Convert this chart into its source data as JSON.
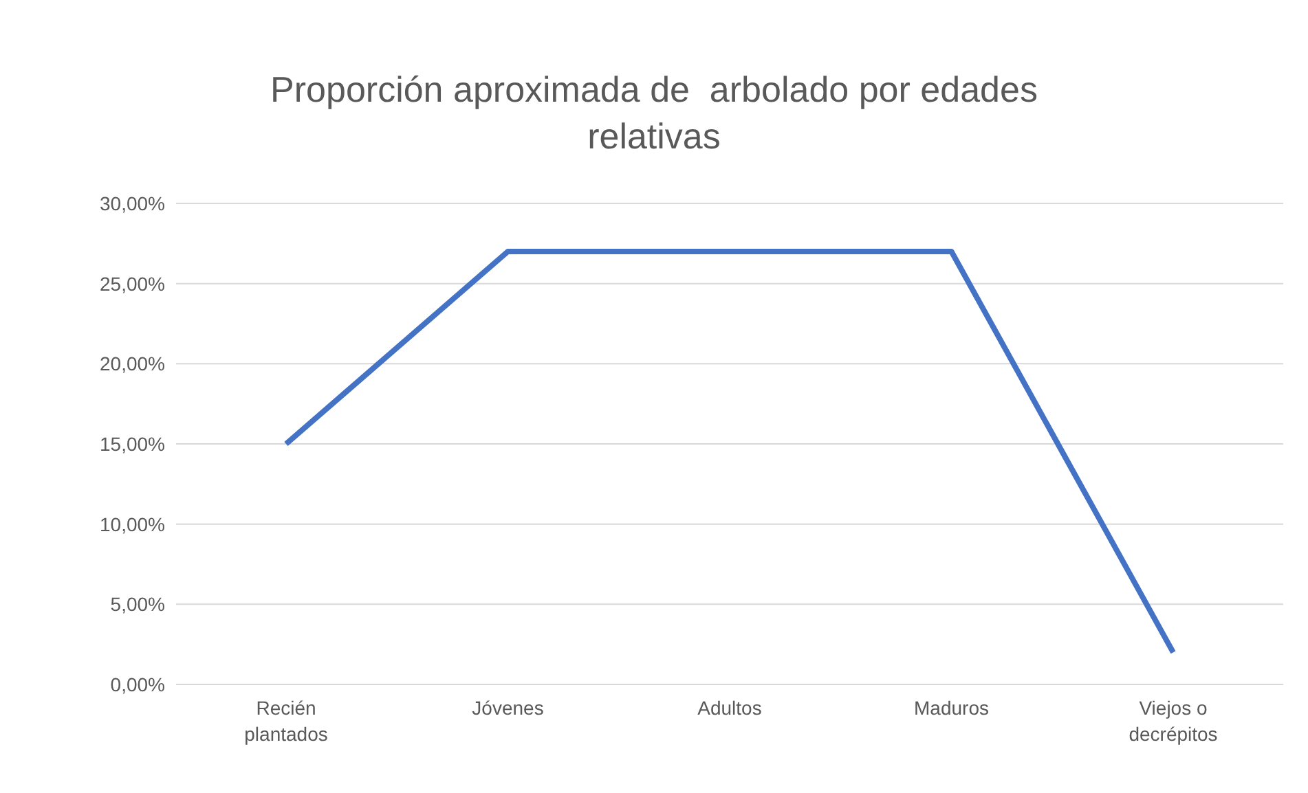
{
  "chart_data": {
    "type": "line",
    "title": "Proporción aproximada de  arbolado por edades relativas",
    "categories": [
      "Recién plantados",
      "Jóvenes",
      "Adultos",
      "Maduros",
      "Viejos o decrépitos"
    ],
    "series": [
      {
        "color": "#4472c4",
        "values": [
          15,
          27,
          27,
          27,
          2
        ]
      }
    ],
    "ylim": [
      0,
      30
    ],
    "yticks": [
      {
        "value": 0,
        "label": "0,00%"
      },
      {
        "value": 5,
        "label": "5,00%"
      },
      {
        "value": 10,
        "label": "10,00%"
      },
      {
        "value": 15,
        "label": "15,00%"
      },
      {
        "value": 20,
        "label": "20,00%"
      },
      {
        "value": 25,
        "label": "25,00%"
      },
      {
        "value": 30,
        "label": "30,00%"
      }
    ],
    "grid": "y",
    "legend": false,
    "marker": "none",
    "line_style": "solid"
  }
}
